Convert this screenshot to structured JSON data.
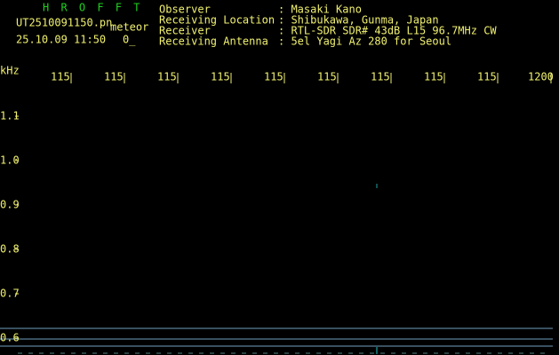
{
  "header": {
    "title": "H R O F F T",
    "file": "UT2510091150.pn",
    "mode": "meteor",
    "datetime": "25.10.09 11:50",
    "count": "0_"
  },
  "info": {
    "rows": [
      [
        "Observer",
        ": Masaki Kano"
      ],
      [
        "Receiving Location",
        ": Shibukawa, Gunma, Japan"
      ],
      [
        "Receiver",
        ": RTL-SDR SDR# 43dB L15 96.7MHz CW"
      ],
      [
        "Receiving Antenna",
        ": 5el Yagi Az 280 for Seoul"
      ]
    ]
  },
  "freq_axis": {
    "unit": "kHz",
    "labels": [
      "115",
      "115",
      "115",
      "115",
      "115",
      "115",
      "115",
      "115",
      "115",
      "1200"
    ]
  },
  "time_axis": {
    "labels": [
      "1.1",
      "1.0",
      "0.9",
      "0.8",
      "0.7",
      "0.6"
    ]
  }
}
